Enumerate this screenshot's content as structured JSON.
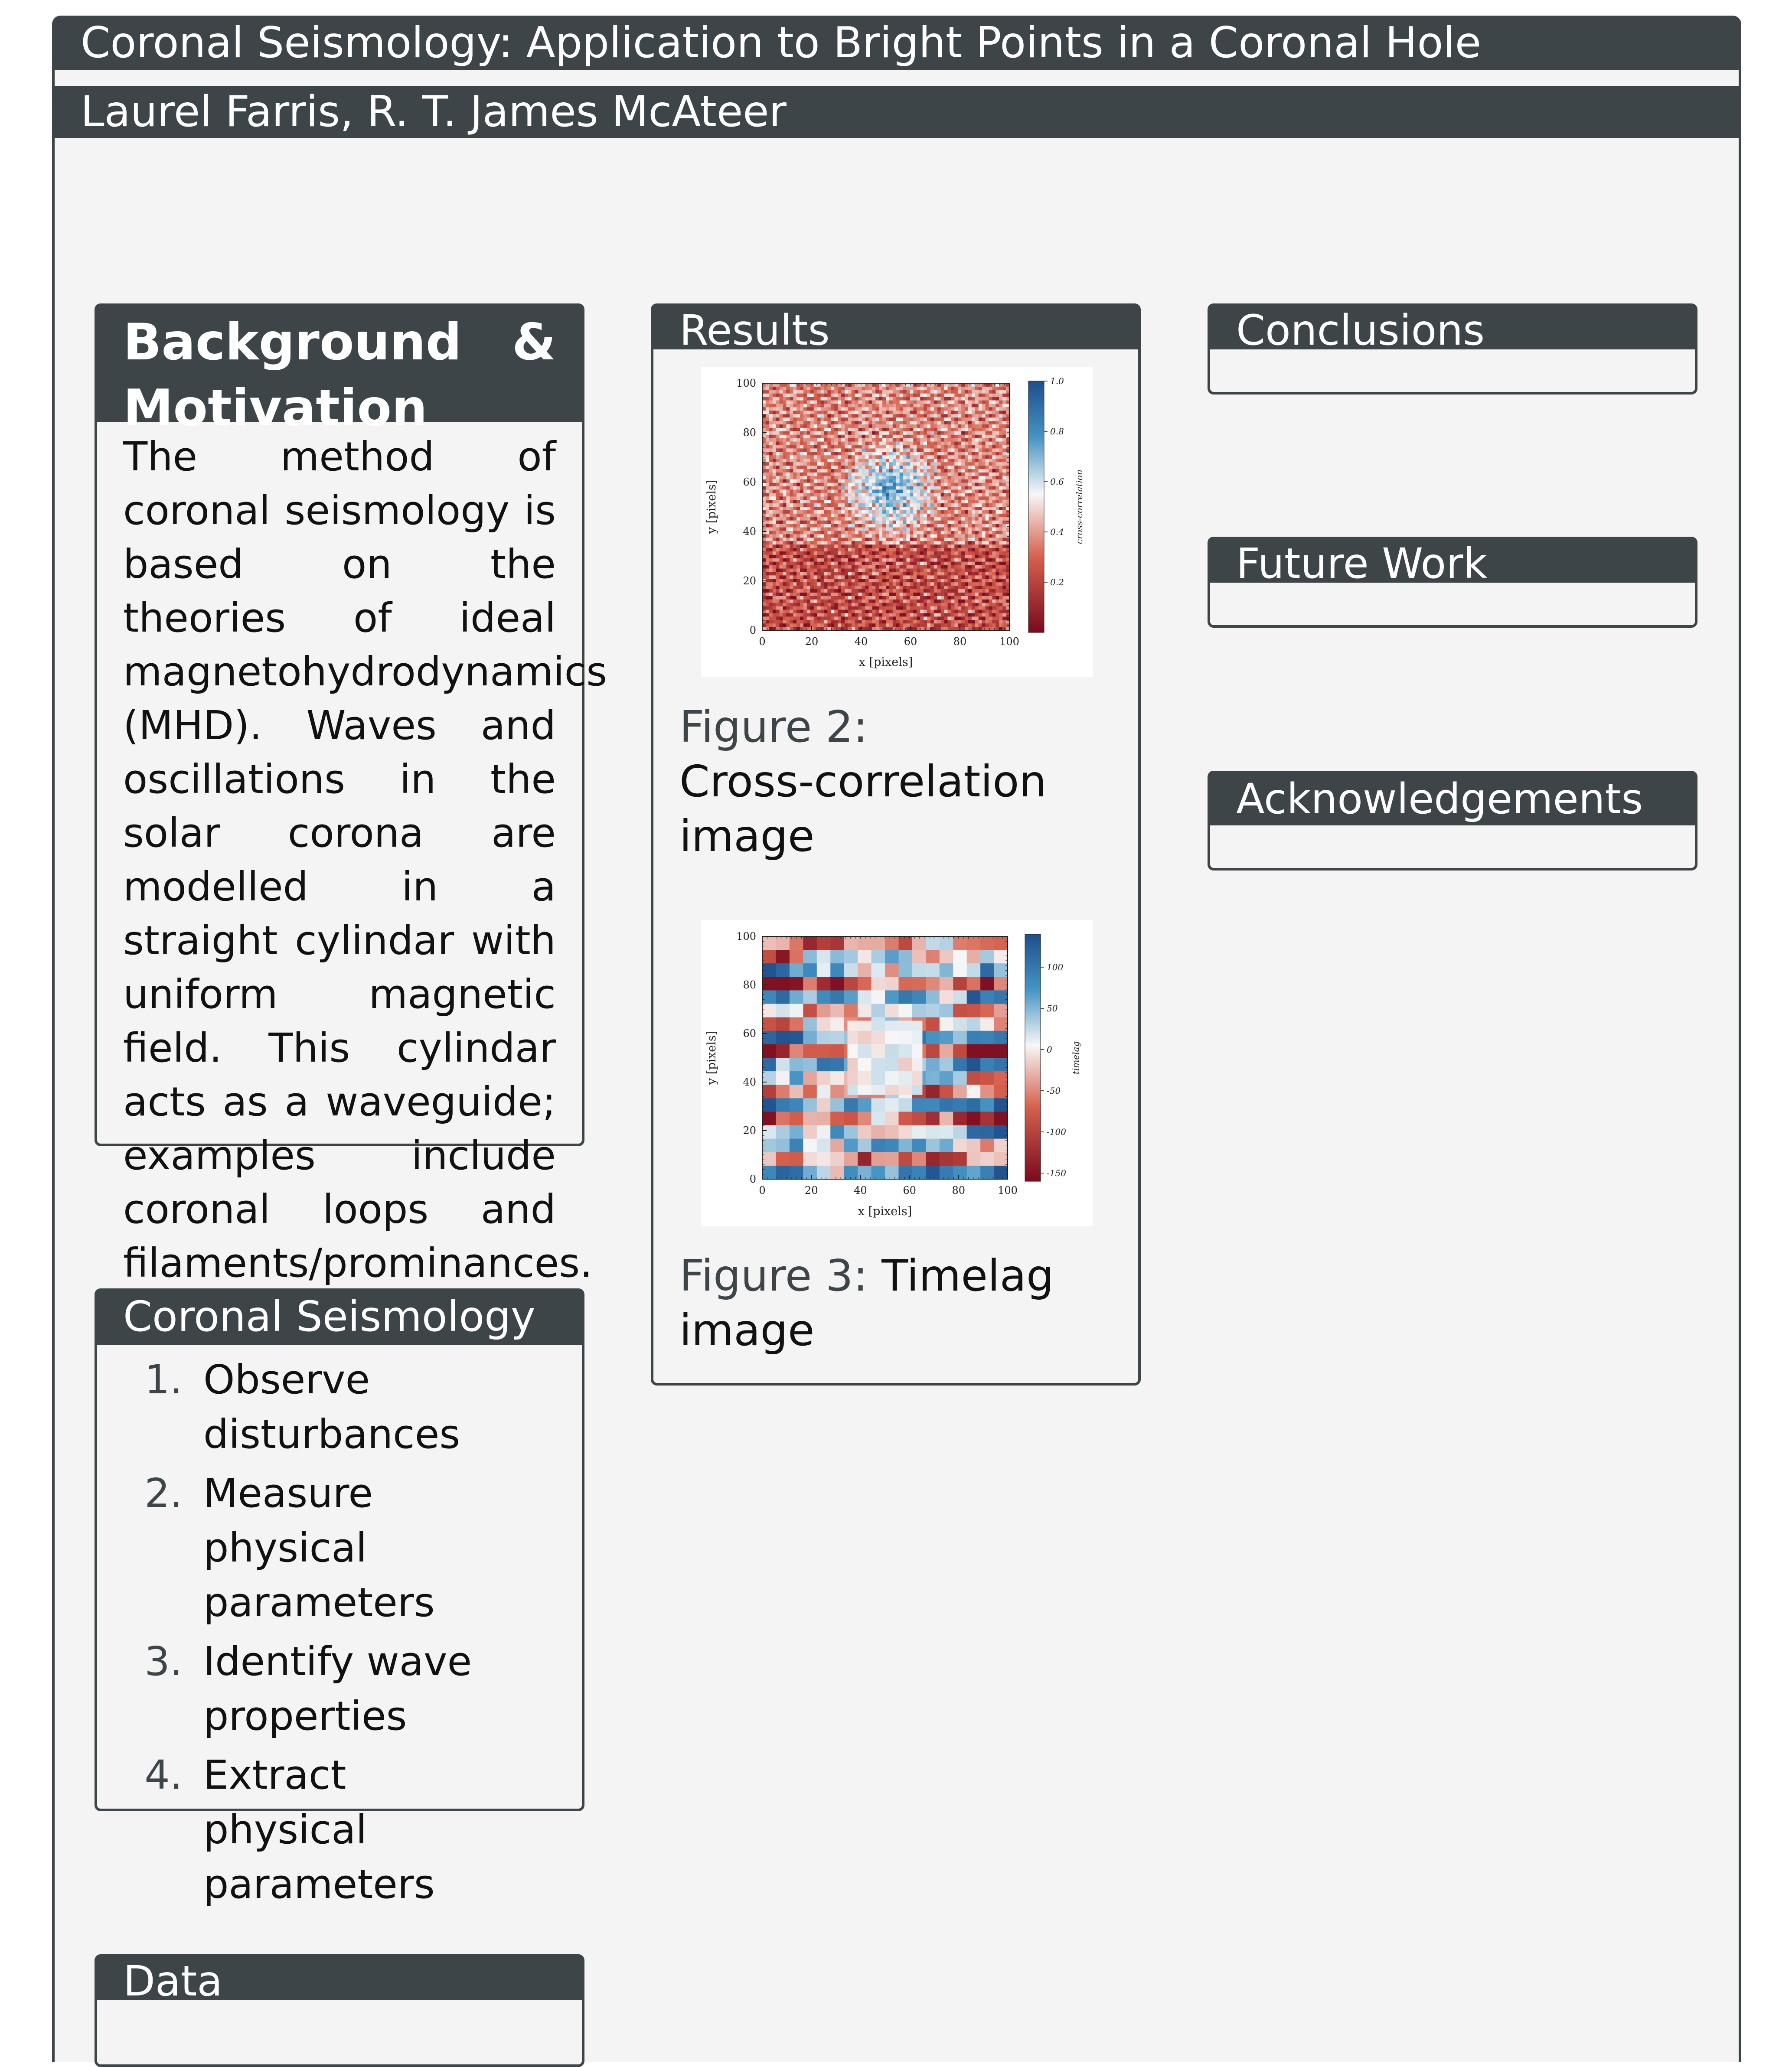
{
  "poster": {
    "title": "Coronal Seismology: Application to Bright Points in a Coronal Hole",
    "authors": "Laurel Farris, R. T. James McAteer"
  },
  "background": {
    "heading": "Background & Motivation",
    "text": "The method of coronal seismology is based on the theories of ideal magnetohydrodynamics (MHD). Waves and oscillations in the solar corona are modelled in a straight cylindar with uniform magnetic field. This cylindar acts as a waveguide; examples include coronal loops and filaments/prominances."
  },
  "seismology": {
    "heading": "Coronal Seismology",
    "steps": [
      {
        "num": "1.",
        "text": "Observe disturbances"
      },
      {
        "num": "2.",
        "text": "Measure physical parameters"
      },
      {
        "num": "3.",
        "text": "Identify wave properties"
      },
      {
        "num": "4.",
        "text": "Extract physical parameters"
      }
    ]
  },
  "data_block": {
    "heading": "Data"
  },
  "results": {
    "heading": "Results",
    "fig2": {
      "label": "Figure 2:",
      "text": "Cross-correlation image"
    },
    "fig3": {
      "label": "Figure 3:",
      "text": "Timelag image"
    }
  },
  "conclusions": {
    "heading": "Conclusions"
  },
  "future": {
    "heading": "Future Work"
  },
  "ack": {
    "heading": "Acknowledgements"
  },
  "chart_data": [
    {
      "type": "heatmap",
      "xlabel": "x [pixels]",
      "ylabel": "y [pixels]",
      "xlim": [
        0,
        100
      ],
      "ylim": [
        0,
        100
      ],
      "xticks": [
        "0",
        "20",
        "40",
        "60",
        "80",
        "100"
      ],
      "yticks": [
        "0",
        "20",
        "40",
        "60",
        "80",
        "100"
      ],
      "colorbar_label": "cross-correlation",
      "colorbar_ticks": [
        "1.0",
        "0.8",
        "0.6",
        "0.4",
        "0.2"
      ],
      "colorbar_range": [
        0.0,
        1.0
      ],
      "colormap": [
        "#7a0a1e",
        "#d6604d",
        "#f7f7f7",
        "#4393c3",
        "#1f4e8c"
      ]
    },
    {
      "type": "heatmap",
      "xlabel": "x [pixels]",
      "ylabel": "y [pixels]",
      "xlim": [
        0,
        100
      ],
      "ylim": [
        0,
        100
      ],
      "xticks": [
        "0",
        "20",
        "40",
        "60",
        "80",
        "100"
      ],
      "yticks": [
        "0",
        "20",
        "40",
        "60",
        "80",
        "100"
      ],
      "colorbar_label": "timelag",
      "colorbar_ticks": [
        "100",
        "50",
        "0",
        "-50",
        "-100",
        "-150"
      ],
      "colorbar_range": [
        -160,
        140
      ],
      "colormap": [
        "#7a0a1e",
        "#d6604d",
        "#f7f7f7",
        "#4393c3",
        "#1f4e8c"
      ]
    }
  ]
}
